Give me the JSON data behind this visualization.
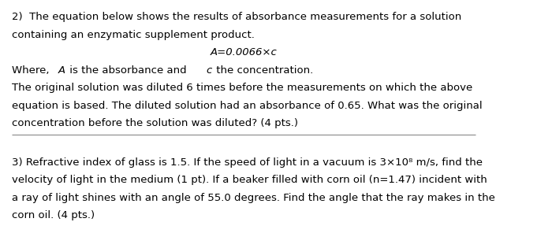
{
  "background_color": "#ffffff",
  "text_color": "#000000",
  "line_color": "#888888",
  "figsize": [
    7.0,
    3.15
  ],
  "dpi": 100,
  "para1_line1": "2)  The equation below shows the results of absorbance measurements for a solution",
  "para1_line2": "containing an enzymatic supplement product.",
  "para1_equation": "A=0.0066×c",
  "para1_line3_a": "Where, ",
  "para1_line3_b": "A",
  "para1_line3_c": " is the absorbance and ",
  "para1_line3_d": "c",
  "para1_line3_e": " the concentration.",
  "para1_line4": "The original solution was diluted 6 times before the measurements on which the above",
  "para1_line5": "equation is based. The diluted solution had an absorbance of 0.65. What was the original",
  "para1_line6": "concentration before the solution was diluted? (4 pts.)",
  "para2_line1": "3) Refractive index of glass is 1.5. If the speed of light in a vacuum is 3×10⁸ m/s, find the",
  "para2_line2": "velocity of light in the medium (1 pt). If a beaker filled with corn oil (n=1.47) incident with",
  "para2_line3": "a ray of light shines with an angle of 55.0 degrees. Find the angle that the ray makes in the",
  "para2_line4": "corn oil. (4 pts.)"
}
